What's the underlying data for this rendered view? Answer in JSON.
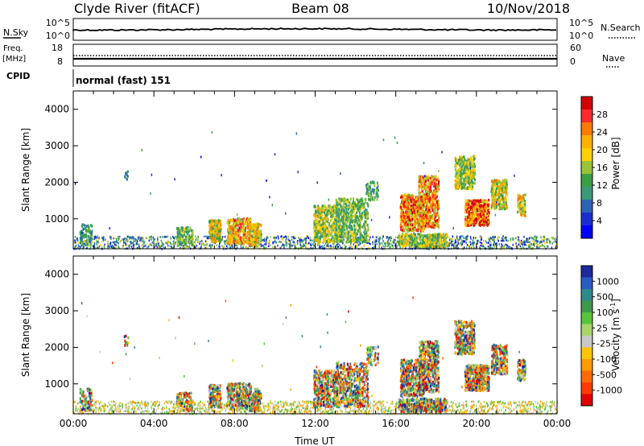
{
  "header": {
    "station": "Clyde River (fitACF)",
    "beam": "Beam 08",
    "date": "10/Nov/2018"
  },
  "summary_panels": {
    "nsky_label": "N.Sky",
    "nsearch_label": "N.Search",
    "left_ticks_top": [
      "10^5",
      "10^0"
    ],
    "right_ticks_top": [
      "10^5",
      "10^0"
    ],
    "freq_label_line1": "Freq.",
    "freq_label_line2": "[MHz]",
    "freq_ticks": [
      "18",
      "8"
    ],
    "nave_label": "Nave",
    "nave_ticks": [
      "60",
      "0"
    ],
    "cpid_label": "CPID",
    "cpid_text": "normal (fast) 151"
  },
  "chart_data": [
    {
      "type": "heatmap",
      "name": "power",
      "ylabel": "Slant Range [km]",
      "ylim": [
        180,
        4500
      ],
      "yticks": [
        1000,
        2000,
        3000,
        4000
      ],
      "xlim_hours": [
        0,
        24
      ],
      "colorbar_label": "Power [dB]",
      "colorbar_ticks": [
        "28",
        "24",
        "20",
        "16",
        "12",
        "8",
        "4"
      ],
      "colorbar_colors": [
        "#d40000",
        "#ff2a2a",
        "#ff7a00",
        "#ffb000",
        "#ffd000",
        "#98c43a",
        "#3aa046",
        "#3a9a78",
        "#2a64b4",
        "#1a2ed0",
        "#0000ff"
      ]
    },
    {
      "type": "heatmap",
      "name": "velocity",
      "ylabel": "Slant Range [km]",
      "ylim": [
        180,
        4500
      ],
      "yticks": [
        1000,
        2000,
        3000,
        4000
      ],
      "xlim_hours": [
        0,
        24
      ],
      "xlabel": "Time UT",
      "xticks": [
        "00:00",
        "04:00",
        "08:00",
        "12:00",
        "16:00",
        "20:00",
        "00:00"
      ],
      "colorbar_label": "Velocity [m s^-1]",
      "colorbar_ticks": [
        "1000",
        "500",
        "100",
        "25",
        "-25",
        "-100",
        "-500",
        "-1000"
      ],
      "colorbar_colors": [
        "#1b2a9c",
        "#2a5cc8",
        "#2f8a8e",
        "#3c9a4a",
        "#58c43c",
        "#a8d46a",
        "#c8c8c8",
        "#ffc400",
        "#ff9a00",
        "#ff6a00",
        "#ff3a00",
        "#e00000"
      ]
    }
  ]
}
